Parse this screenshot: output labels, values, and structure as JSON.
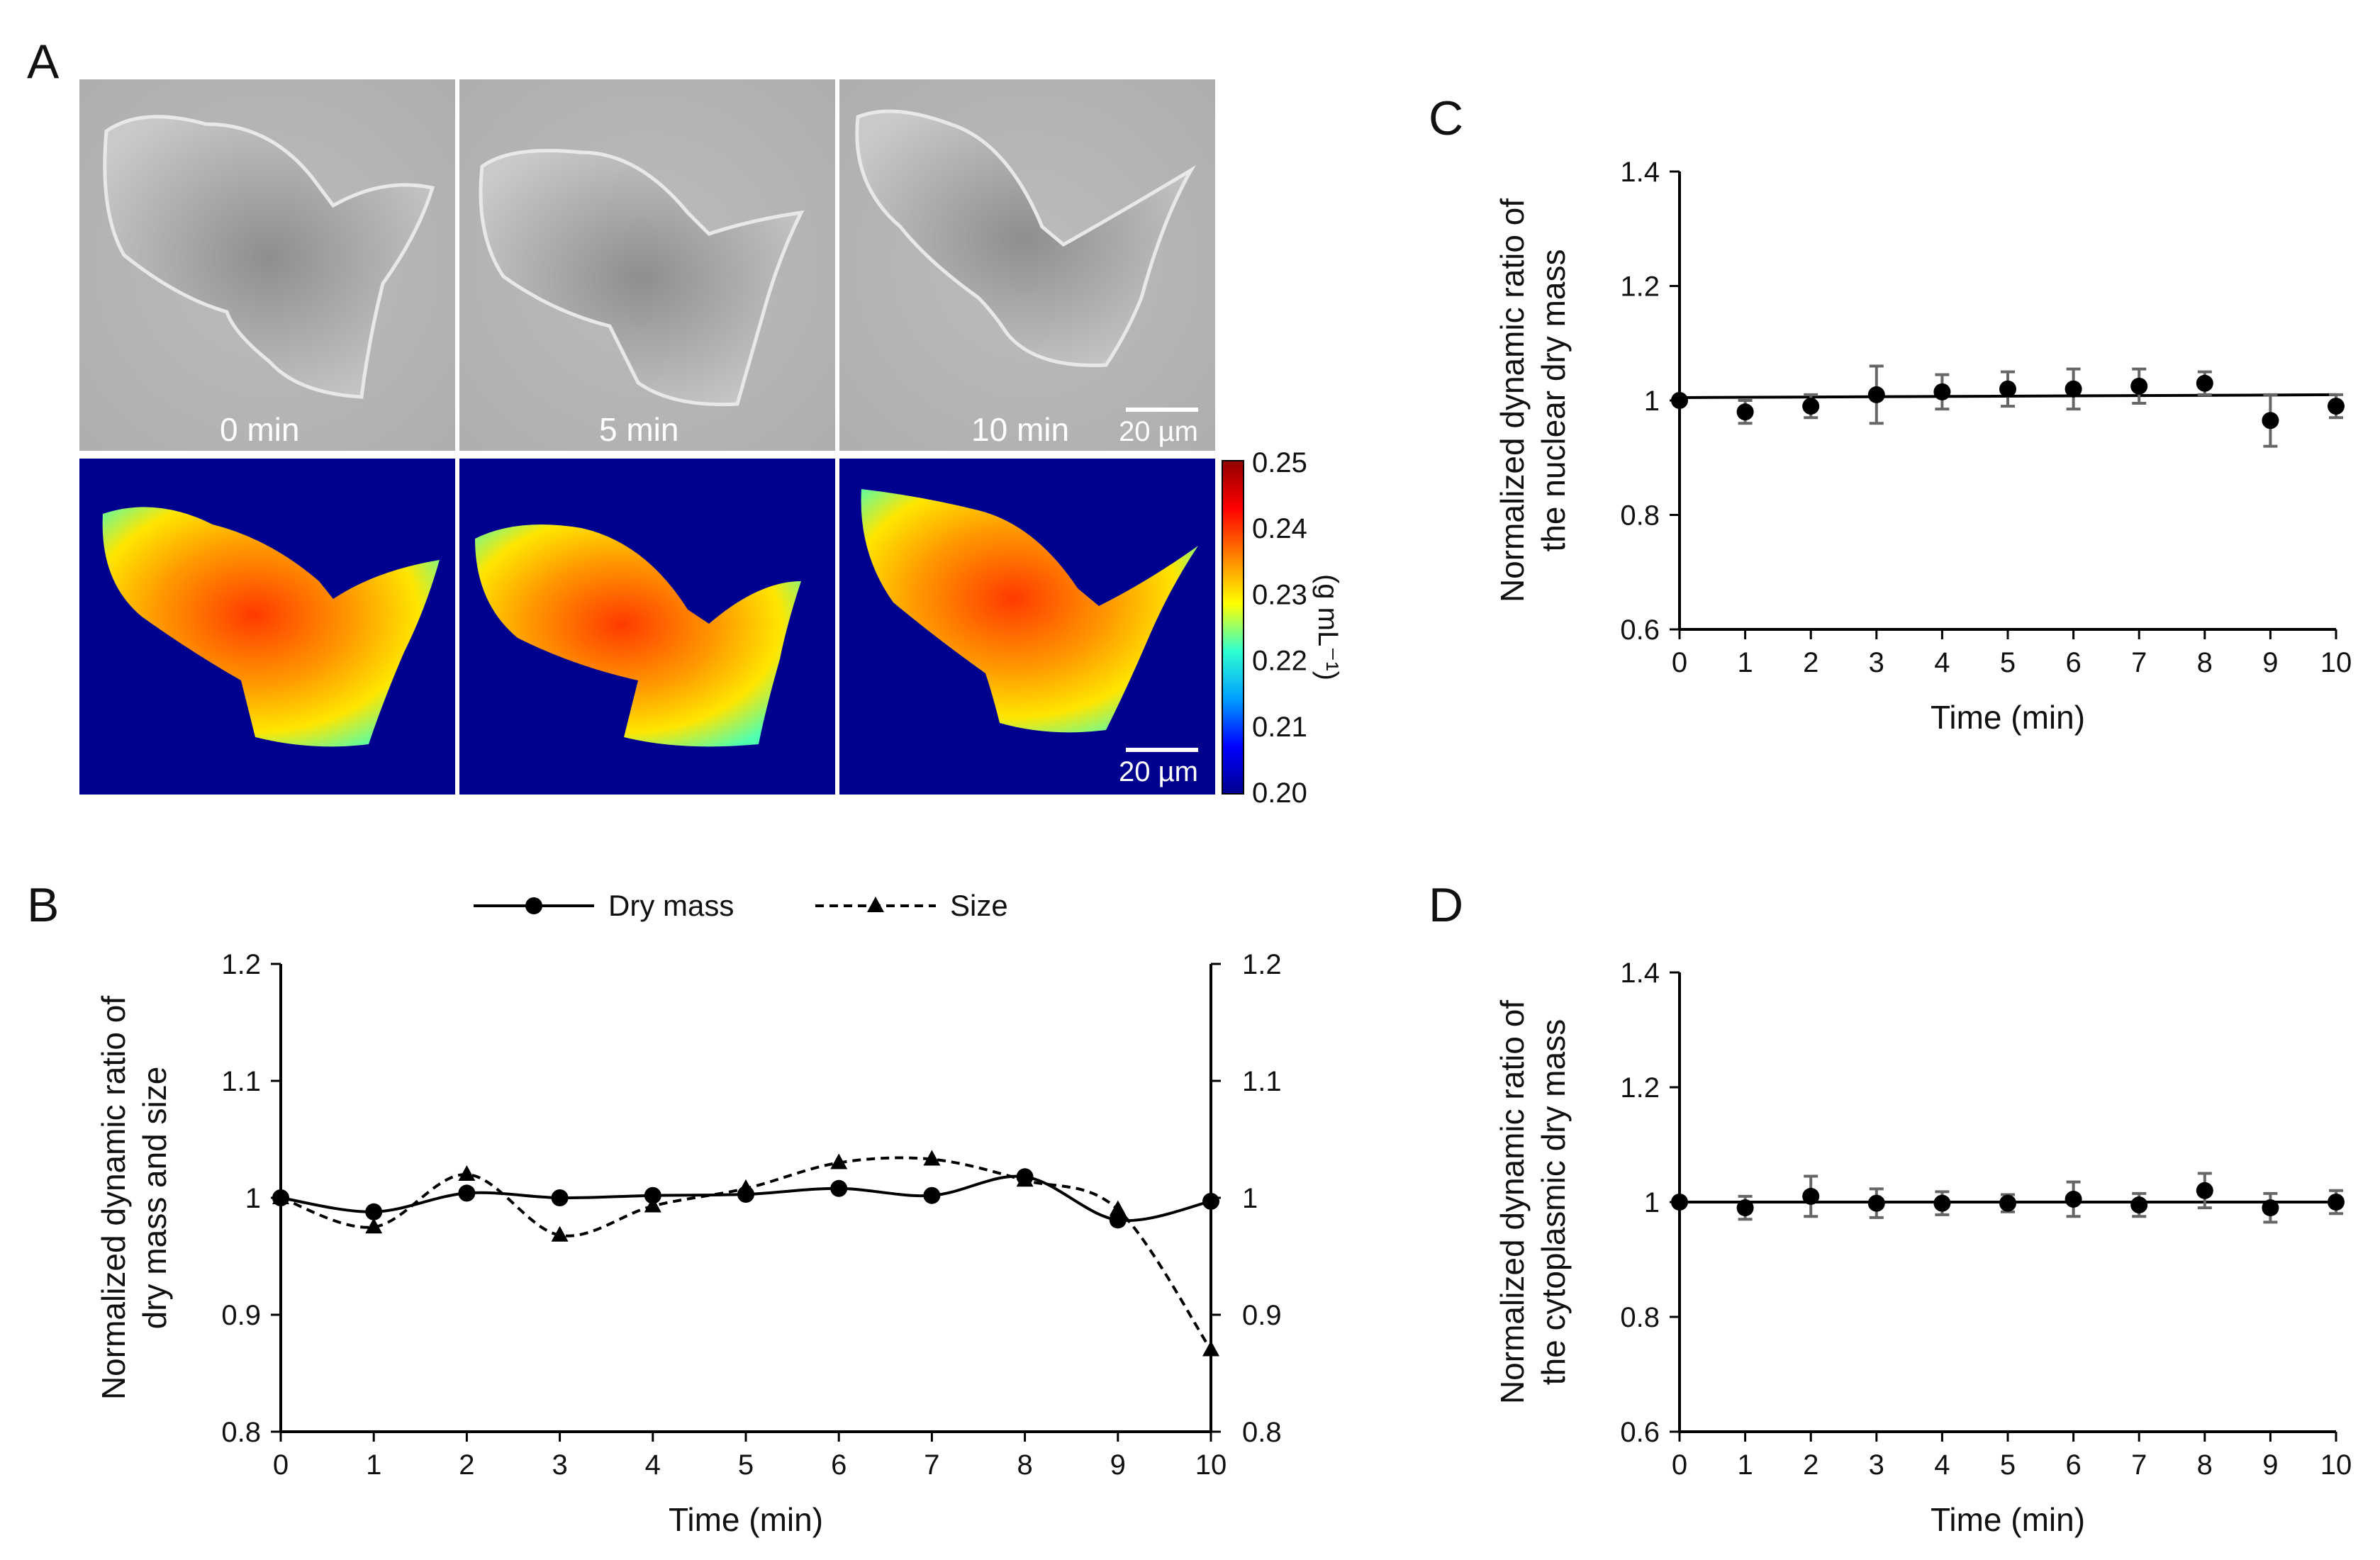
{
  "panels": {
    "A": {
      "letter": "A",
      "images_top": [
        {
          "label": "0 min"
        },
        {
          "label": "5 min"
        },
        {
          "label": "10 min"
        }
      ],
      "images_bottom": [
        {},
        {},
        {}
      ],
      "scalebar_label": "20 µm",
      "colorbar": {
        "ticks": [
          "0.25",
          "0.24",
          "0.23",
          "0.22",
          "0.21",
          "0.20"
        ],
        "unit": "(g mL⁻¹)",
        "colors": [
          "#00008f",
          "#0000ff",
          "#00a0ff",
          "#2fffd0",
          "#ffff00",
          "#ff8000",
          "#ff0000",
          "#8f0000"
        ]
      }
    },
    "B": {
      "letter": "B"
    },
    "C": {
      "letter": "C"
    },
    "D": {
      "letter": "D"
    }
  },
  "chart_data": [
    {
      "panel": "B",
      "type": "line",
      "x": [
        0,
        1,
        2,
        3,
        4,
        5,
        6,
        7,
        8,
        9,
        10
      ],
      "series": [
        {
          "name": "Dry mass",
          "marker": "circle",
          "dash": "solid",
          "values": [
            1.0,
            0.988,
            1.004,
            1.0,
            1.002,
            1.003,
            1.008,
            1.002,
            1.018,
            0.981,
            0.997
          ]
        },
        {
          "name": "Size",
          "marker": "triangle",
          "dash": "dashed",
          "values": [
            1.0,
            0.975,
            1.02,
            0.968,
            0.993,
            1.008,
            1.03,
            1.033,
            1.015,
            0.99,
            0.87
          ]
        }
      ],
      "xlabel": "Time (min)",
      "ylabel": [
        "Normalized dynamic ratio of",
        "dry mass and size"
      ],
      "xlim": [
        0,
        10
      ],
      "ylim": [
        0.8,
        1.2
      ],
      "yticks": [
        "0.8",
        "0.9",
        "1",
        "1.1",
        "1.2"
      ],
      "yticks_right": [
        "0.8",
        "0.9",
        "1",
        "1.1",
        "1.2"
      ],
      "xticks": [
        "0",
        "1",
        "2",
        "3",
        "4",
        "5",
        "6",
        "7",
        "8",
        "9",
        "10"
      ],
      "legend": "top-center"
    },
    {
      "panel": "C",
      "type": "scatter",
      "x": [
        0,
        1,
        2,
        3,
        4,
        5,
        6,
        7,
        8,
        9,
        10
      ],
      "values": [
        1.0,
        0.98,
        0.99,
        1.01,
        1.015,
        1.02,
        1.02,
        1.025,
        1.03,
        0.965,
        0.99
      ],
      "errors": [
        0.0,
        0.02,
        0.02,
        0.05,
        0.03,
        0.03,
        0.035,
        0.03,
        0.02,
        0.045,
        0.02
      ],
      "trendline": [
        [
          0,
          1.005
        ],
        [
          10,
          1.01
        ]
      ],
      "xlabel": "Time (min)",
      "ylabel": [
        "Normalized dynamic ratio of",
        "the nuclear dry mass"
      ],
      "xlim": [
        0,
        10
      ],
      "ylim": [
        0.6,
        1.4
      ],
      "yticks": [
        "0.6",
        "0.8",
        "1",
        "1.2",
        "1.4"
      ],
      "xticks": [
        "0",
        "1",
        "2",
        "3",
        "4",
        "5",
        "6",
        "7",
        "8",
        "9",
        "10"
      ]
    },
    {
      "panel": "D",
      "type": "scatter",
      "x": [
        0,
        1,
        2,
        3,
        4,
        5,
        6,
        7,
        8,
        9,
        10
      ],
      "values": [
        1.0,
        0.99,
        1.01,
        0.998,
        0.998,
        0.998,
        1.005,
        0.995,
        1.02,
        0.99,
        1.0
      ],
      "errors": [
        0.0,
        0.02,
        0.035,
        0.025,
        0.02,
        0.015,
        0.03,
        0.02,
        0.03,
        0.025,
        0.02
      ],
      "trendline": [
        [
          0,
          1.0
        ],
        [
          10,
          1.0
        ]
      ],
      "xlabel": "Time (min)",
      "ylabel": [
        "Normalized dynamic ratio of",
        "the cytoplasmic dry mass"
      ],
      "xlim": [
        0,
        10
      ],
      "ylim": [
        0.6,
        1.4
      ],
      "yticks": [
        "0.6",
        "0.8",
        "1",
        "1.2",
        "1.4"
      ],
      "xticks": [
        "0",
        "1",
        "2",
        "3",
        "4",
        "5",
        "6",
        "7",
        "8",
        "9",
        "10"
      ]
    }
  ]
}
